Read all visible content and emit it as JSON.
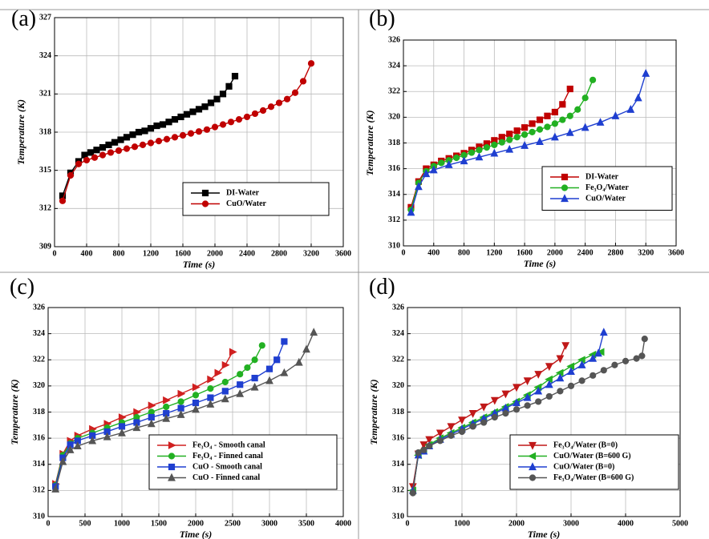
{
  "chart_data": [
    {
      "type": "line",
      "panel_label": "(a)",
      "xlabel": "Time (s)",
      "ylabel": "Temperature (K)",
      "grid": true,
      "legend": "lower right",
      "xlim": [
        0,
        3600
      ],
      "xticks": [
        0,
        400,
        800,
        1200,
        1600,
        2000,
        2400,
        2800,
        3200,
        3600
      ],
      "ylim": [
        309,
        327
      ],
      "yticks": [
        309,
        312,
        315,
        318,
        321,
        324,
        327
      ],
      "series": [
        {
          "name": "DI-Water",
          "color": "#000000",
          "marker": "square",
          "x": [
            100,
            200,
            300,
            375,
            450,
            525,
            600,
            675,
            750,
            825,
            900,
            975,
            1050,
            1125,
            1200,
            1275,
            1350,
            1425,
            1500,
            1575,
            1650,
            1725,
            1800,
            1875,
            1950,
            2025,
            2100,
            2175,
            2250
          ],
          "values": [
            313.0,
            314.8,
            315.7,
            316.2,
            316.4,
            316.6,
            316.8,
            317.0,
            317.2,
            317.4,
            317.6,
            317.8,
            318.0,
            318.1,
            318.3,
            318.5,
            318.6,
            318.8,
            319.0,
            319.2,
            319.4,
            319.6,
            319.8,
            320.0,
            320.3,
            320.6,
            321.0,
            321.6,
            322.4
          ]
        },
        {
          "name": "CuO/Water",
          "color": "#c00000",
          "marker": "circle",
          "x": [
            100,
            200,
            300,
            400,
            500,
            600,
            700,
            800,
            900,
            1000,
            1100,
            1200,
            1300,
            1400,
            1500,
            1600,
            1700,
            1800,
            1900,
            2000,
            2100,
            2200,
            2300,
            2400,
            2500,
            2600,
            2700,
            2800,
            2900,
            3000,
            3100,
            3200
          ],
          "values": [
            312.6,
            314.6,
            315.5,
            315.8,
            316.0,
            316.2,
            316.4,
            316.55,
            316.7,
            316.85,
            317.0,
            317.15,
            317.3,
            317.45,
            317.6,
            317.75,
            317.9,
            318.05,
            318.2,
            318.4,
            318.6,
            318.8,
            319.0,
            319.2,
            319.45,
            319.7,
            320.0,
            320.3,
            320.6,
            321.1,
            322.0,
            323.4
          ]
        }
      ]
    },
    {
      "type": "line",
      "panel_label": "(b)",
      "xlabel": "Time (s)",
      "ylabel": "Temperature (K)",
      "grid": true,
      "legend": "lower right",
      "xlim": [
        0,
        3600
      ],
      "xticks": [
        0,
        400,
        800,
        1200,
        1600,
        2000,
        2400,
        2800,
        3200,
        3600
      ],
      "ylim": [
        310,
        326
      ],
      "yticks": [
        310,
        312,
        314,
        316,
        318,
        320,
        322,
        324,
        326
      ],
      "series": [
        {
          "name": "DI-Water",
          "color": "#c00000",
          "marker": "square",
          "x": [
            100,
            200,
            300,
            400,
            500,
            600,
            700,
            800,
            900,
            1000,
            1100,
            1200,
            1300,
            1400,
            1500,
            1600,
            1700,
            1800,
            1900,
            2000,
            2100,
            2200
          ],
          "values": [
            313.0,
            315.0,
            316.0,
            316.3,
            316.6,
            316.8,
            317.0,
            317.2,
            317.45,
            317.7,
            317.95,
            318.2,
            318.45,
            318.7,
            318.95,
            319.2,
            319.5,
            319.8,
            320.1,
            320.4,
            321.0,
            322.2
          ]
        },
        {
          "name": "Fe₃O₄/Water",
          "color": "#22b022",
          "marker": "circle",
          "x": [
            100,
            200,
            300,
            400,
            500,
            600,
            700,
            800,
            900,
            1000,
            1100,
            1200,
            1300,
            1400,
            1500,
            1600,
            1700,
            1800,
            1900,
            2000,
            2100,
            2200,
            2300,
            2400,
            2500
          ],
          "values": [
            312.8,
            314.9,
            315.8,
            316.2,
            316.45,
            316.65,
            316.85,
            317.05,
            317.25,
            317.45,
            317.65,
            317.85,
            318.05,
            318.25,
            318.45,
            318.65,
            318.85,
            319.05,
            319.25,
            319.5,
            319.8,
            320.1,
            320.6,
            321.5,
            322.9
          ]
        },
        {
          "name": "CuO/Water",
          "color": "#1f3fd0",
          "marker": "triangle-up",
          "x": [
            100,
            200,
            300,
            400,
            600,
            800,
            1000,
            1200,
            1400,
            1600,
            1800,
            2000,
            2200,
            2400,
            2600,
            2800,
            3000,
            3100,
            3200
          ],
          "values": [
            312.6,
            314.6,
            315.6,
            315.9,
            316.3,
            316.6,
            316.9,
            317.2,
            317.5,
            317.8,
            318.1,
            318.45,
            318.8,
            319.2,
            319.6,
            320.1,
            320.6,
            321.5,
            323.4
          ]
        }
      ]
    },
    {
      "type": "line",
      "panel_label": "(c)",
      "xlabel": "Time (s)",
      "ylabel": "Temperature (K)",
      "grid": true,
      "legend": "lower right",
      "xlim": [
        0,
        4000
      ],
      "xticks": [
        0,
        500,
        1000,
        1500,
        2000,
        2500,
        3000,
        3500,
        4000
      ],
      "ylim": [
        310,
        326
      ],
      "yticks": [
        310,
        312,
        314,
        316,
        318,
        320,
        322,
        324,
        326
      ],
      "series": [
        {
          "name": "Fe₃O₄ - Smooth canal",
          "color": "#d02020",
          "marker": "triangle-right",
          "x": [
            100,
            200,
            300,
            400,
            600,
            800,
            1000,
            1200,
            1400,
            1600,
            1800,
            2000,
            2200,
            2300,
            2400,
            2500
          ],
          "values": [
            312.5,
            314.8,
            315.8,
            316.2,
            316.7,
            317.1,
            317.6,
            318.0,
            318.5,
            318.9,
            319.4,
            319.9,
            320.5,
            321.0,
            321.6,
            322.6
          ]
        },
        {
          "name": "Fe₃O₄ - Finned canal",
          "color": "#22b022",
          "marker": "circle",
          "x": [
            100,
            200,
            300,
            400,
            600,
            800,
            1000,
            1200,
            1400,
            1600,
            1800,
            2000,
            2200,
            2400,
            2600,
            2700,
            2800,
            2900
          ],
          "values": [
            312.4,
            314.7,
            315.6,
            316.0,
            316.4,
            316.8,
            317.2,
            317.6,
            318.0,
            318.4,
            318.8,
            319.3,
            319.8,
            320.3,
            320.9,
            321.4,
            322.0,
            323.1
          ]
        },
        {
          "name": "CuO  -  Smooth canal",
          "color": "#1f3fd0",
          "marker": "square",
          "x": [
            100,
            200,
            300,
            400,
            600,
            800,
            1000,
            1200,
            1400,
            1600,
            1800,
            2000,
            2200,
            2400,
            2600,
            2800,
            3000,
            3100,
            3200
          ],
          "values": [
            312.3,
            314.5,
            315.5,
            315.8,
            316.2,
            316.5,
            316.9,
            317.2,
            317.6,
            317.9,
            318.3,
            318.7,
            319.1,
            319.6,
            320.1,
            320.6,
            321.3,
            322.0,
            323.4
          ]
        },
        {
          "name": "CuO  -  Finned canal",
          "color": "#555555",
          "marker": "triangle-up",
          "x": [
            100,
            200,
            300,
            400,
            600,
            800,
            1000,
            1200,
            1400,
            1600,
            1800,
            2000,
            2200,
            2400,
            2600,
            2800,
            3000,
            3200,
            3400,
            3500,
            3600
          ],
          "values": [
            312.1,
            314.2,
            315.1,
            315.4,
            315.8,
            316.1,
            316.4,
            316.8,
            317.1,
            317.5,
            317.8,
            318.2,
            318.6,
            319.0,
            319.4,
            319.9,
            320.4,
            321.0,
            321.8,
            322.8,
            324.1
          ]
        }
      ]
    },
    {
      "type": "line",
      "panel_label": "(d)",
      "xlabel": "Time (s)",
      "ylabel": "Temperature (K)",
      "grid": true,
      "legend": "lower right",
      "xlim": [
        0,
        5000
      ],
      "xticks": [
        0,
        1000,
        2000,
        3000,
        4000,
        5000
      ],
      "ylim": [
        310,
        326
      ],
      "yticks": [
        310,
        312,
        314,
        316,
        318,
        320,
        322,
        324,
        326
      ],
      "series": [
        {
          "name": "Fe₃O₄/Water (B=0)",
          "color": "#c01818",
          "marker": "triangle-down",
          "x": [
            100,
            200,
            300,
            400,
            600,
            800,
            1000,
            1200,
            1400,
            1600,
            1800,
            2000,
            2200,
            2400,
            2600,
            2800,
            2900
          ],
          "values": [
            312.3,
            314.8,
            315.5,
            315.9,
            316.4,
            316.9,
            317.4,
            317.9,
            318.4,
            318.9,
            319.4,
            319.9,
            320.4,
            320.9,
            321.5,
            322.1,
            323.1
          ]
        },
        {
          "name": "CuO/Water (B=600  G)",
          "color": "#22b022",
          "marker": "triangle-left",
          "x": [
            100,
            200,
            300,
            400,
            600,
            800,
            1000,
            1200,
            1400,
            1600,
            1800,
            2000,
            2200,
            2400,
            2600,
            2800,
            3000,
            3200,
            3400,
            3550
          ],
          "values": [
            312.0,
            314.7,
            315.1,
            315.5,
            316.0,
            316.4,
            316.8,
            317.2,
            317.6,
            318.0,
            318.4,
            318.8,
            319.3,
            319.9,
            320.5,
            321.0,
            321.5,
            322.0,
            322.4,
            322.6
          ]
        },
        {
          "name": "CuO/Water (B=0)",
          "color": "#1f3fd0",
          "marker": "triangle-up",
          "x": [
            100,
            200,
            300,
            400,
            600,
            800,
            1000,
            1200,
            1400,
            1600,
            1800,
            2000,
            2200,
            2400,
            2600,
            2800,
            3000,
            3200,
            3400,
            3500,
            3600
          ],
          "values": [
            312.0,
            314.7,
            315.0,
            315.4,
            315.9,
            316.3,
            316.7,
            317.1,
            317.5,
            317.9,
            318.3,
            318.7,
            319.1,
            319.6,
            320.1,
            320.6,
            321.1,
            321.6,
            322.1,
            322.5,
            324.1
          ]
        },
        {
          "name": "Fe₃O₄/Water (B=600  G)",
          "color": "#555555",
          "marker": "circle",
          "x": [
            100,
            200,
            300,
            400,
            600,
            800,
            1000,
            1200,
            1400,
            1600,
            1800,
            2000,
            2200,
            2400,
            2600,
            2800,
            3000,
            3200,
            3400,
            3600,
            3800,
            4000,
            4200,
            4300,
            4350
          ],
          "values": [
            311.8,
            314.9,
            315.1,
            315.4,
            315.8,
            316.2,
            316.5,
            316.9,
            317.2,
            317.6,
            317.9,
            318.2,
            318.5,
            318.8,
            319.2,
            319.6,
            320.0,
            320.4,
            320.8,
            321.2,
            321.6,
            321.9,
            322.1,
            322.3,
            323.6
          ]
        }
      ]
    }
  ]
}
